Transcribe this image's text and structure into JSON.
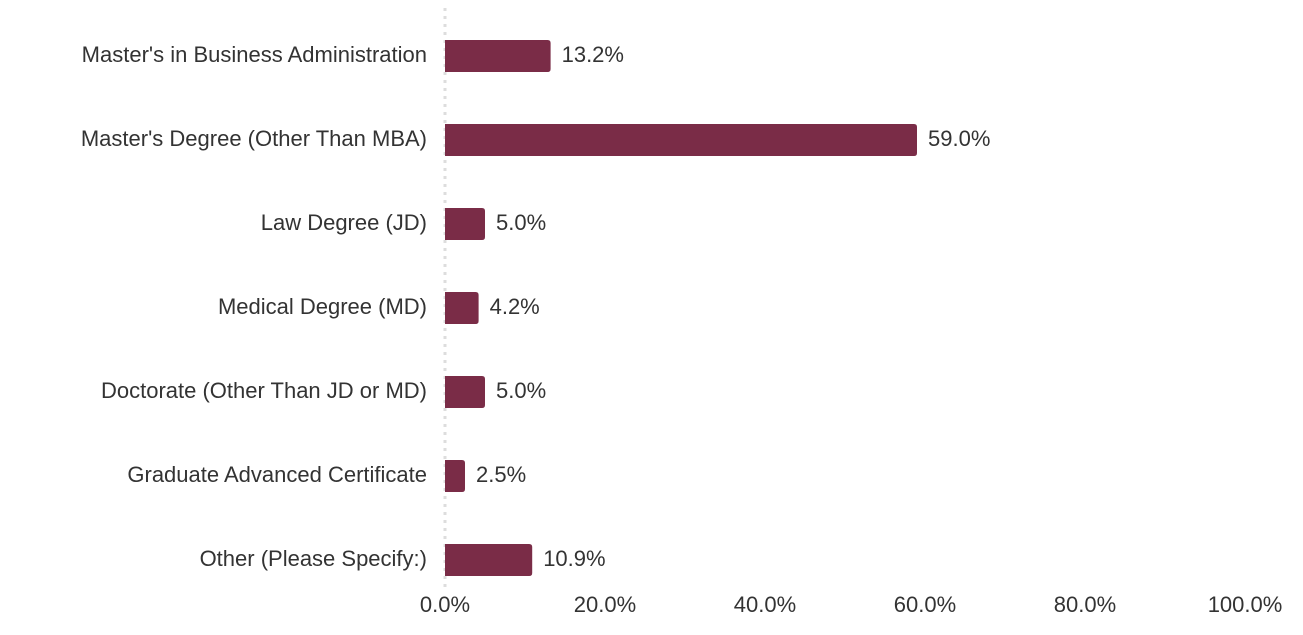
{
  "chart_data": {
    "type": "bar",
    "orientation": "horizontal",
    "categories": [
      "Master's in Business Administration",
      "Master's Degree (Other Than MBA)",
      "Law Degree (JD)",
      "Medical Degree (MD)",
      "Doctorate (Other Than JD or MD)",
      "Graduate Advanced Certificate",
      "Other (Please Specify:)"
    ],
    "values": [
      13.2,
      59.0,
      5.0,
      4.2,
      5.0,
      2.5,
      10.9
    ],
    "value_labels": [
      "13.2%",
      "59.0%",
      "5.0%",
      "4.2%",
      "5.0%",
      "2.5%",
      "10.9%"
    ],
    "color": "#7a2c47",
    "xlim": [
      0,
      100
    ],
    "xticks": [
      {
        "value": 0,
        "label": "0.0%"
      },
      {
        "value": 20,
        "label": "20.0%"
      },
      {
        "value": 40,
        "label": "40.0%"
      },
      {
        "value": 60,
        "label": "60.0%"
      },
      {
        "value": 80,
        "label": "80.0%"
      },
      {
        "value": 100,
        "label": "100.0%"
      }
    ]
  }
}
